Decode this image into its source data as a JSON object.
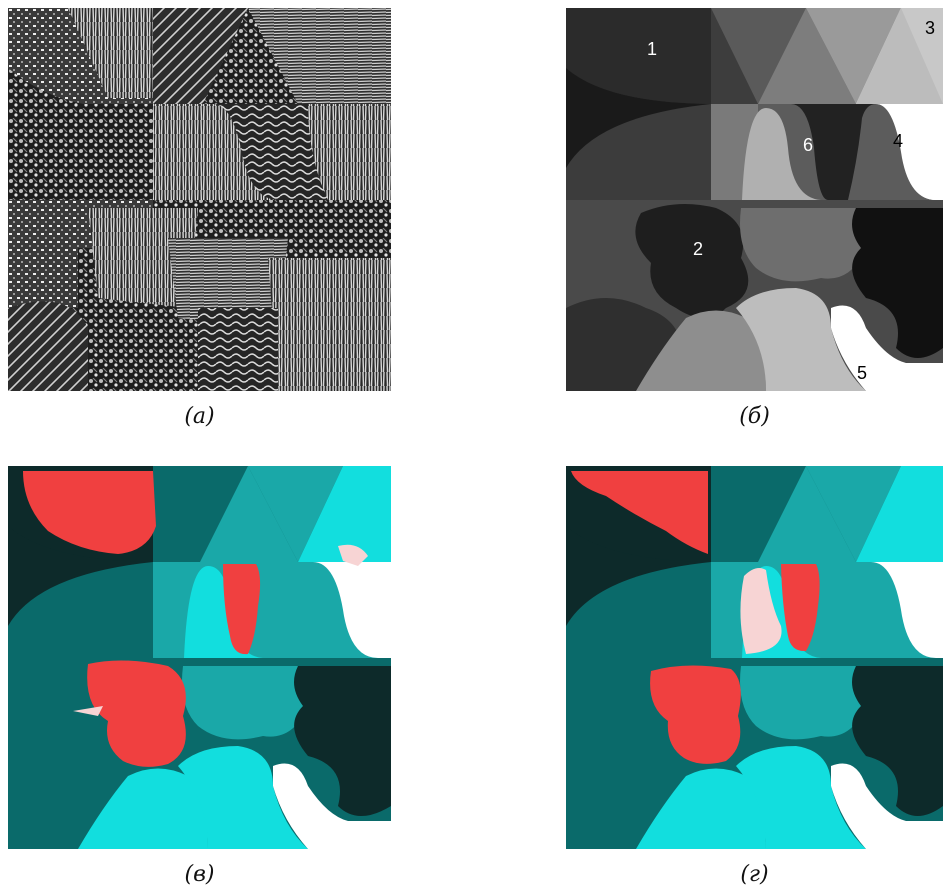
{
  "panels": [
    {
      "id": "a",
      "caption": "(а)"
    },
    {
      "id": "b",
      "caption": "(б)"
    },
    {
      "id": "c",
      "caption": "(в)"
    },
    {
      "id": "d",
      "caption": "(г)"
    }
  ],
  "region_labels": [
    "1",
    "2",
    "3",
    "4",
    "5",
    "6"
  ],
  "colors": {
    "seg_red": "#f04040",
    "seg_pink": "#f7d4d4",
    "teal_dark": "#0d2a2a",
    "teal_mid": "#0a6a6a",
    "teal": "#1aa8a8",
    "cyan": "#12dede"
  }
}
